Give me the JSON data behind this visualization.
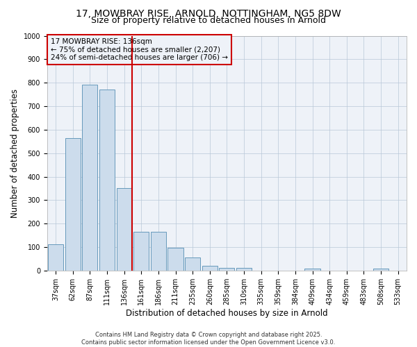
{
  "title_line1": "17, MOWBRAY RISE, ARNOLD, NOTTINGHAM, NG5 8DW",
  "title_line2": "Size of property relative to detached houses in Arnold",
  "categories": [
    "37sqm",
    "62sqm",
    "87sqm",
    "111sqm",
    "136sqm",
    "161sqm",
    "186sqm",
    "211sqm",
    "235sqm",
    "260sqm",
    "285sqm",
    "310sqm",
    "335sqm",
    "359sqm",
    "384sqm",
    "409sqm",
    "434sqm",
    "459sqm",
    "483sqm",
    "508sqm",
    "533sqm"
  ],
  "values": [
    113,
    565,
    793,
    770,
    350,
    165,
    165,
    97,
    55,
    20,
    12,
    10,
    0,
    0,
    0,
    8,
    0,
    0,
    0,
    8,
    0
  ],
  "bar_color": "#ccdcec",
  "bar_edgecolor": "#6699bb",
  "background_color": "#ffffff",
  "plot_bg_color": "#eef2f8",
  "vline_x_index": 4,
  "vline_color": "#cc0000",
  "xlabel": "Distribution of detached houses by size in Arnold",
  "ylabel": "Number of detached properties",
  "ylim": [
    0,
    1000
  ],
  "yticks": [
    0,
    100,
    200,
    300,
    400,
    500,
    600,
    700,
    800,
    900,
    1000
  ],
  "annotation_title": "17 MOWBRAY RISE: 136sqm",
  "annotation_line1": "← 75% of detached houses are smaller (2,207)",
  "annotation_line2": "24% of semi-detached houses are larger (706) →",
  "annotation_box_color": "#cc0000",
  "footer_line1": "Contains HM Land Registry data © Crown copyright and database right 2025.",
  "footer_line2": "Contains public sector information licensed under the Open Government Licence v3.0.",
  "grid_color": "#b8c8d8",
  "title_fontsize": 10,
  "subtitle_fontsize": 9,
  "axis_label_fontsize": 8.5,
  "tick_fontsize": 7,
  "annotation_fontsize": 7.5,
  "footer_fontsize": 6
}
